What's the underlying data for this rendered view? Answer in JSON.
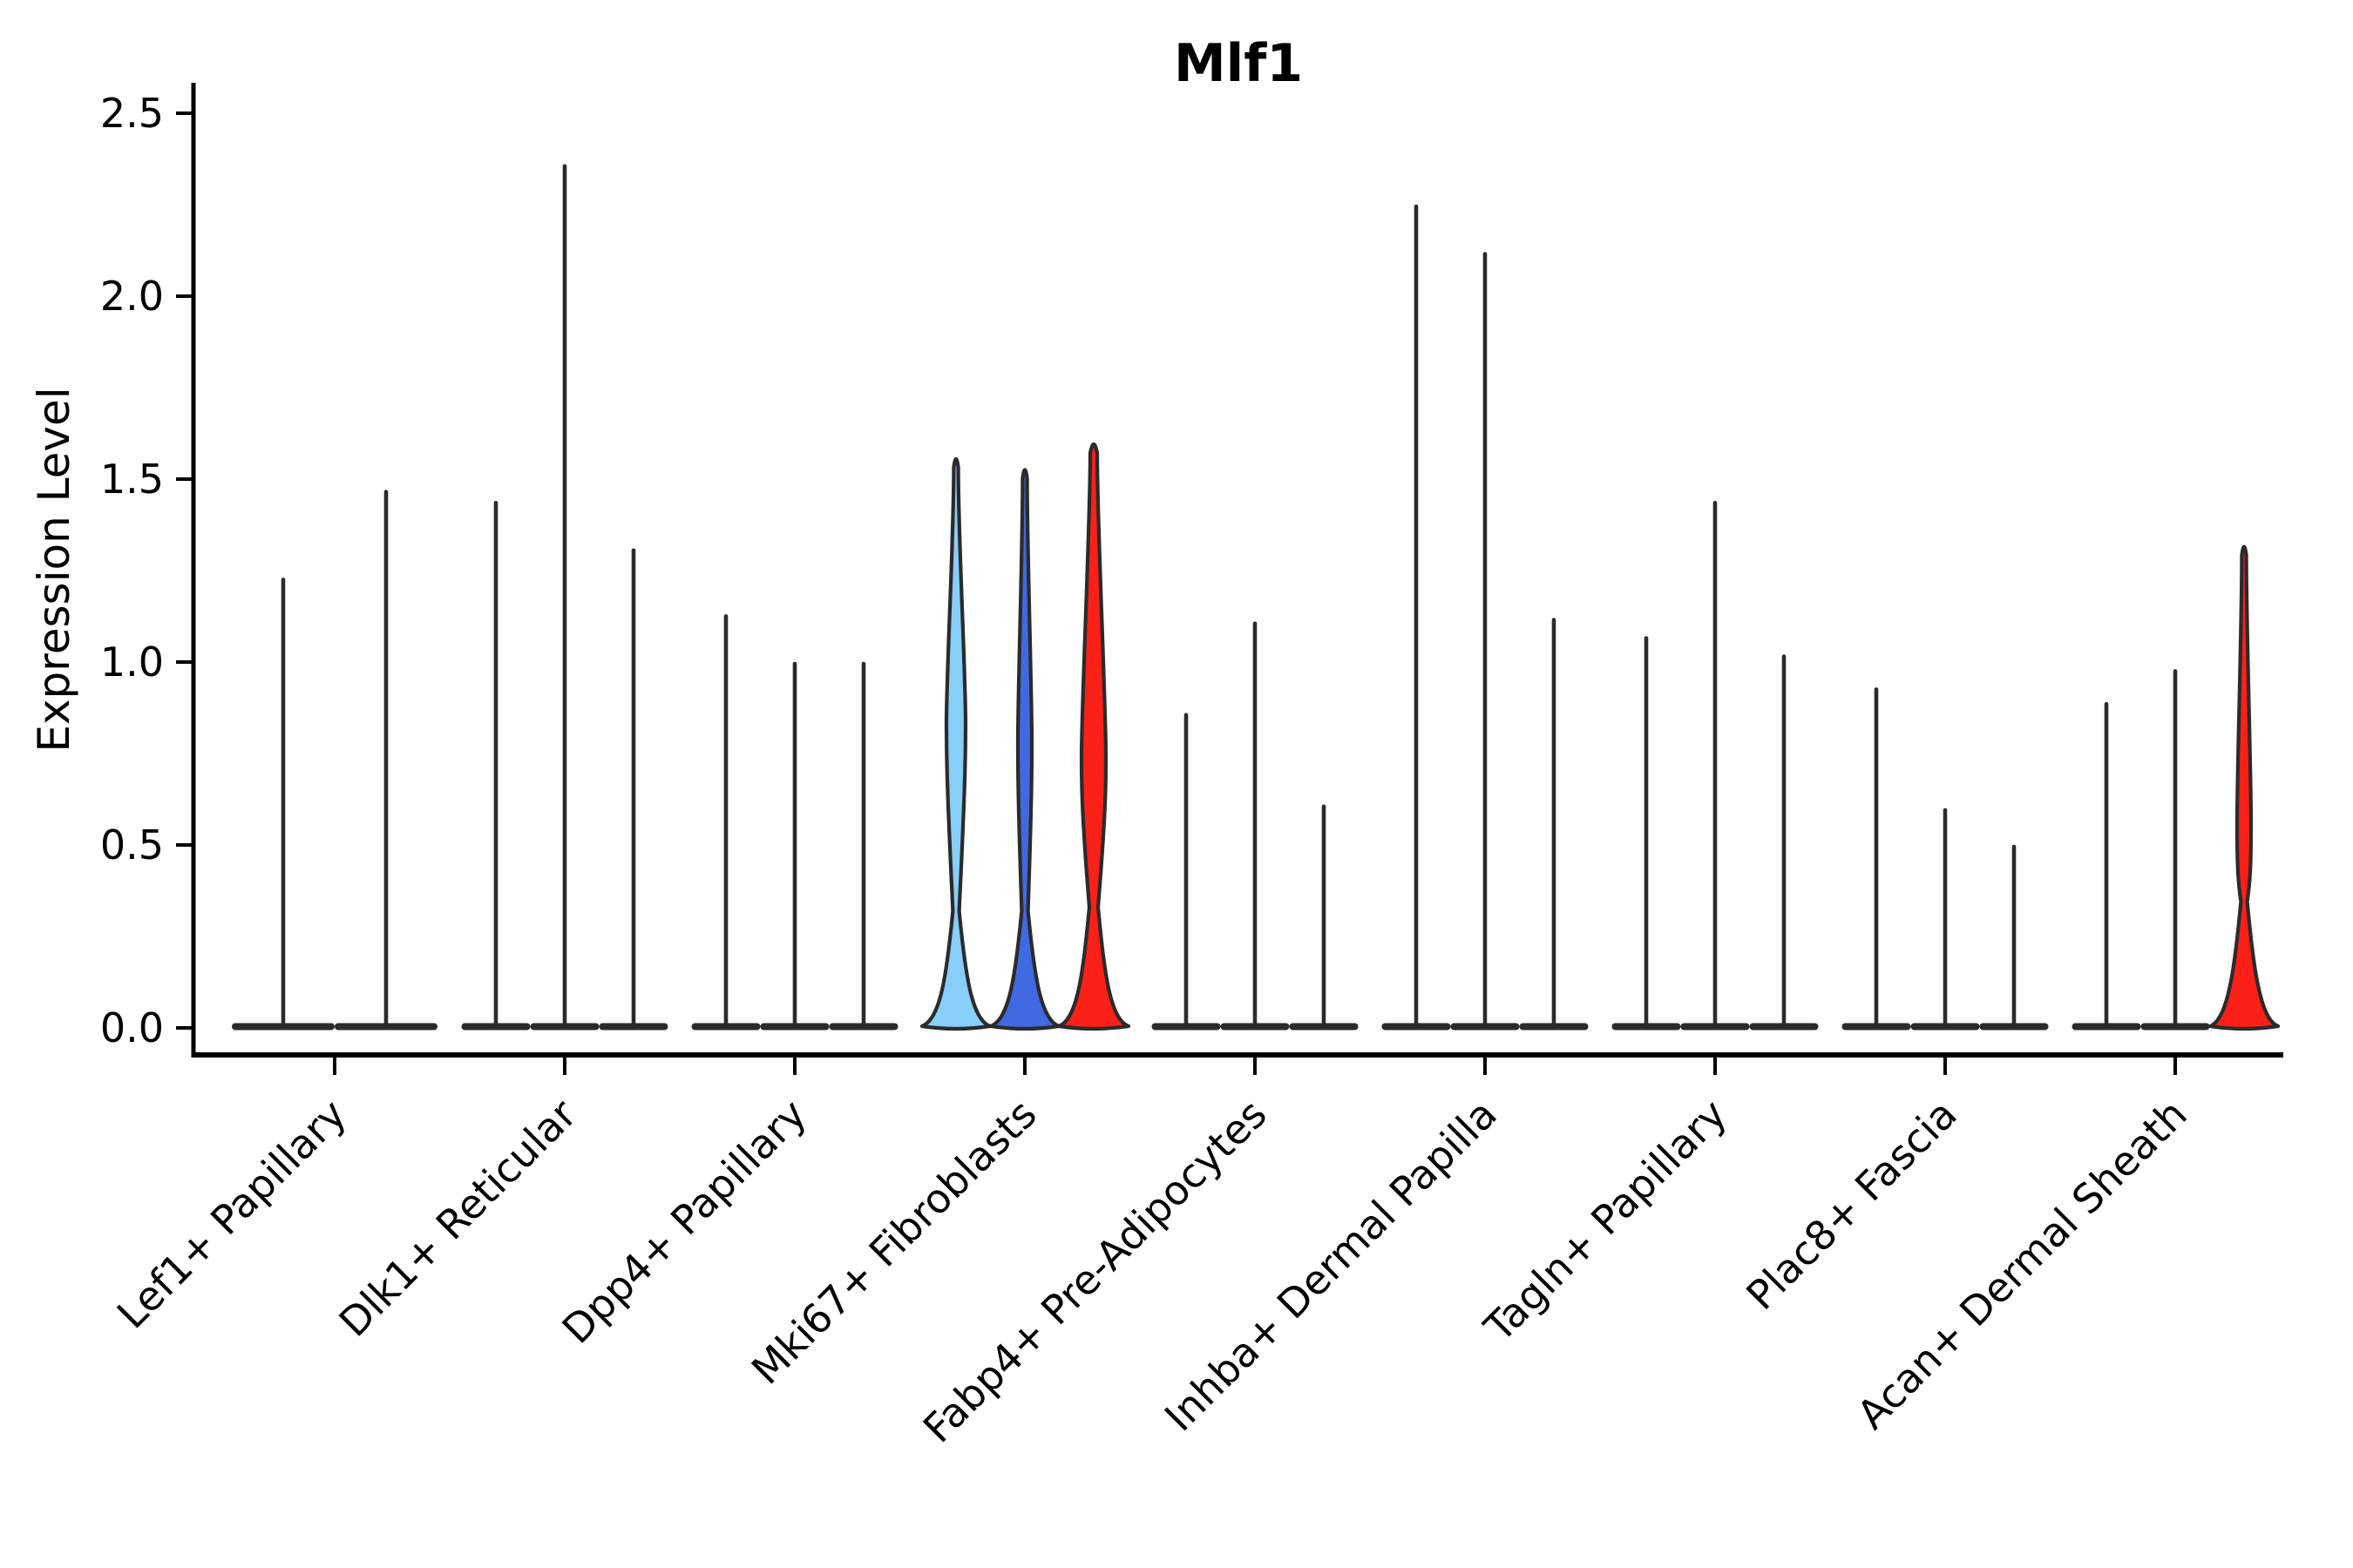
{
  "chart_data": {
    "type": "violin",
    "title": "Mlf1",
    "ylabel": "Expression Level",
    "xlabel": "",
    "ylim": [
      0,
      2.5
    ],
    "yticks": [
      "0.0",
      "0.5",
      "1.0",
      "1.5",
      "2.0",
      "2.5"
    ],
    "grid": false,
    "legend": "none",
    "categories": [
      "Lef1+ Papillary",
      "Dlk1+ Reticular",
      "Dpp4+ Papillary",
      "Mki67+ Fibroblasts",
      "Fabp4+ Pre-Adipocytes",
      "Inhba+ Dermal Papilla",
      "Tagln+ Papillary",
      "Plac8+ Fascia",
      "Acan+ Dermal Sheath"
    ],
    "colors": {
      "outline": "#2b2b2b",
      "highlight_lightblue": "#87CEFA",
      "highlight_blue": "#4169E1",
      "highlight_red": "#FB2018"
    },
    "groups": [
      {
        "category": "Lef1+ Papillary",
        "violins": [
          {
            "max": 1.23,
            "fill": "none"
          },
          {
            "max": 1.47,
            "fill": "none"
          }
        ]
      },
      {
        "category": "Dlk1+ Reticular",
        "violins": [
          {
            "max": 1.44,
            "fill": "none"
          },
          {
            "max": 2.36,
            "fill": "none"
          },
          {
            "max": 1.31,
            "fill": "none"
          }
        ]
      },
      {
        "category": "Dpp4+ Papillary",
        "violins": [
          {
            "max": 1.13,
            "fill": "none"
          },
          {
            "max": 1.0,
            "fill": "none"
          },
          {
            "max": 1.0,
            "fill": "none"
          }
        ]
      },
      {
        "category": "Mki67+ Fibroblasts",
        "violins": [
          {
            "max": 1.56,
            "fill": "#87CEFA",
            "lens_center": 0.83,
            "lens_hw": 11,
            "neck": 0.32,
            "base_hw": 39,
            "stem_hw": 2.6
          },
          {
            "max": 1.53,
            "fill": "#4169E1",
            "lens_center": 0.78,
            "lens_hw": 8,
            "neck": 0.32,
            "base_hw": 39,
            "stem_hw": 2.6
          },
          {
            "max": 1.6,
            "fill": "#FB2018",
            "lens_center": 0.74,
            "lens_hw": 14,
            "neck": 0.33,
            "base_hw": 40,
            "stem_hw": 4.0
          }
        ]
      },
      {
        "category": "Fabp4+ Pre-Adipocytes",
        "violins": [
          {
            "max": 0.86,
            "fill": "none"
          },
          {
            "max": 1.11,
            "fill": "none"
          },
          {
            "max": 0.61,
            "fill": "none"
          }
        ]
      },
      {
        "category": "Inhba+ Dermal Papilla",
        "violins": [
          {
            "max": 2.25,
            "fill": "none"
          },
          {
            "max": 2.12,
            "fill": "none"
          },
          {
            "max": 1.12,
            "fill": "none"
          }
        ]
      },
      {
        "category": "Tagln+ Papillary",
        "violins": [
          {
            "max": 1.07,
            "fill": "none"
          },
          {
            "max": 1.44,
            "fill": "none"
          },
          {
            "max": 1.02,
            "fill": "none"
          }
        ]
      },
      {
        "category": "Plac8+ Fascia",
        "violins": [
          {
            "max": 0.93,
            "fill": "none"
          },
          {
            "max": 0.6,
            "fill": "none"
          },
          {
            "max": 0.5,
            "fill": "none"
          }
        ]
      },
      {
        "category": "Acan+ Dermal Sheath",
        "violins": [
          {
            "max": 0.89,
            "fill": "none"
          },
          {
            "max": 0.98,
            "fill": "none"
          },
          {
            "max": 1.32,
            "fill": "#FB2018",
            "lens_center": 0.56,
            "lens_hw": 8,
            "neck": 0.345,
            "base_hw": 39,
            "stem_hw": 2.6
          }
        ]
      }
    ]
  }
}
